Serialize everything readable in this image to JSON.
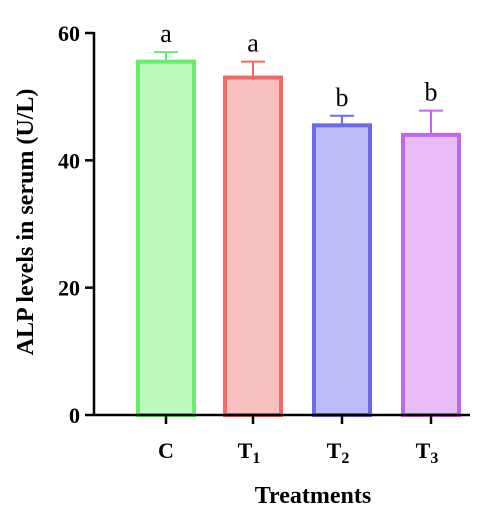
{
  "chart_data": {
    "type": "bar",
    "xlabel": "Treatments",
    "ylabel": "ALP levels in serum (U/L)",
    "ylim": [
      0,
      60
    ],
    "yticks": [
      0,
      20,
      40,
      60
    ],
    "grid": false,
    "categories": [
      {
        "base": "C",
        "sub": ""
      },
      {
        "base": "T",
        "sub": "1"
      },
      {
        "base": "T",
        "sub": "2"
      },
      {
        "base": "T",
        "sub": "3"
      }
    ],
    "values": [
      55.5,
      53.0,
      45.5,
      44.0
    ],
    "errors": [
      1.5,
      2.5,
      1.5,
      3.8
    ],
    "significance": [
      "a",
      "a",
      "b",
      "b"
    ],
    "bar_fill": [
      "#bdf8bd",
      "#f9c0c0",
      "#bcbcf8",
      "#e8bcf6"
    ],
    "bar_stroke": [
      "#66ee66",
      "#f06868",
      "#6a6af0",
      "#c068ec"
    ]
  }
}
